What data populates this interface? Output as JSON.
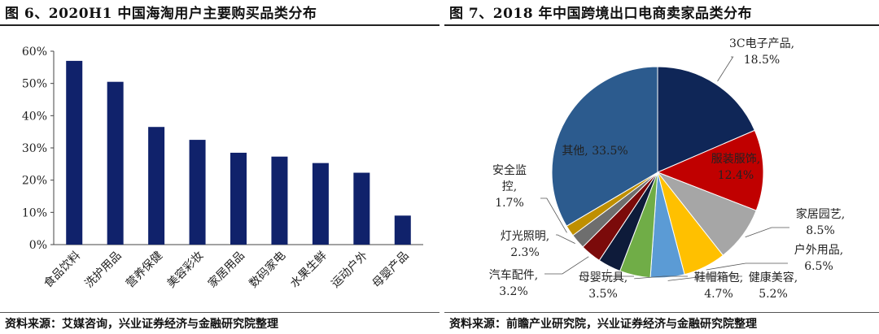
{
  "left_panel": {
    "title": "图 6、2020H1 中国海淘用户主要购买品类分布",
    "source": "资料来源：艾媒咨询，兴业证券经济与金融研究院整理"
  },
  "right_panel": {
    "title": "图 7、2018 年中国跨境出口电商卖家品类分布",
    "source": "资料来源：前瞻产业研究院，兴业证券经济与金融研究院整理"
  },
  "colors": {
    "bar": "#10226b",
    "pie": [
      "#0f2657",
      "#c00000",
      "#a6a6a6",
      "#ffc000",
      "#5b9bd5",
      "#70ad47",
      "#0e1b3a",
      "#7b0a0a",
      "#6e6e6e",
      "#bf8f00",
      "#2c5b8e"
    ]
  },
  "chart_data": [
    {
      "type": "bar",
      "categories": [
        "食品饮料",
        "洗护用品",
        "营养保健",
        "美容彩妆",
        "家居用品",
        "数码家电",
        "水果生鲜",
        "运动户外",
        "母婴产品"
      ],
      "values": [
        57,
        50.5,
        36.5,
        32.5,
        28.5,
        27.3,
        25.3,
        22.3,
        9
      ],
      "ylim": [
        0,
        60
      ],
      "yticks": [
        "0%",
        "10%",
        "20%",
        "30%",
        "40%",
        "50%",
        "60%"
      ],
      "grid": false
    },
    {
      "type": "pie",
      "labels": [
        "3C电子产品,",
        "服装服饰,",
        "家居园艺,",
        "户外用品,",
        "健康美容,",
        "鞋帽箱包,",
        "母婴玩具,",
        "汽车配件,",
        "灯光照明,",
        "安全监控,",
        "其他, 33.5%"
      ],
      "percent_labels": [
        "18.5%",
        "12.4%",
        "8.5%",
        "6.5%",
        "5.2%",
        "4.7%",
        "3.5%",
        "3.2%",
        "2.3%",
        "1.7%",
        ""
      ],
      "values": [
        18.5,
        12.4,
        8.5,
        6.5,
        5.2,
        4.7,
        3.5,
        3.2,
        2.3,
        1.7,
        33.5
      ]
    }
  ]
}
